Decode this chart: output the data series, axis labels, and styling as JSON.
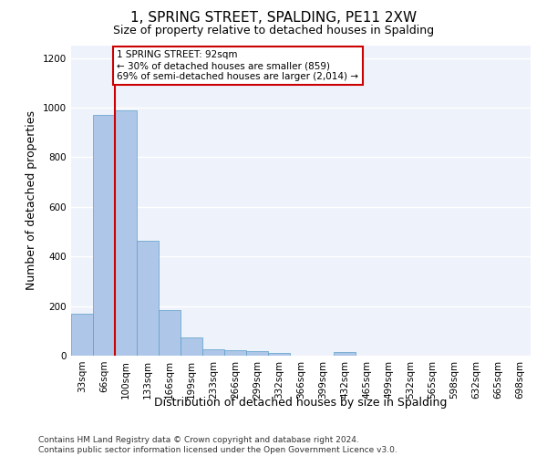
{
  "title": "1, SPRING STREET, SPALDING, PE11 2XW",
  "subtitle": "Size of property relative to detached houses in Spalding",
  "xlabel": "Distribution of detached houses by size in Spalding",
  "ylabel": "Number of detached properties",
  "categories": [
    "33sqm",
    "66sqm",
    "100sqm",
    "133sqm",
    "166sqm",
    "199sqm",
    "233sqm",
    "266sqm",
    "299sqm",
    "332sqm",
    "366sqm",
    "399sqm",
    "432sqm",
    "465sqm",
    "499sqm",
    "532sqm",
    "565sqm",
    "598sqm",
    "632sqm",
    "665sqm",
    "698sqm"
  ],
  "values": [
    170,
    970,
    990,
    465,
    185,
    75,
    27,
    22,
    18,
    11,
    0,
    0,
    15,
    0,
    0,
    0,
    0,
    0,
    0,
    0,
    0
  ],
  "bar_color": "#aec6e8",
  "bar_edge_color": "#5a9fc8",
  "red_line_x": 1.5,
  "annotation_text": "1 SPRING STREET: 92sqm\n← 30% of detached houses are smaller (859)\n69% of semi-detached houses are larger (2,014) →",
  "annotation_box_color": "#ffffff",
  "annotation_box_edge_color": "#cc0000",
  "ylim": [
    0,
    1250
  ],
  "yticks": [
    0,
    200,
    400,
    600,
    800,
    1000,
    1200
  ],
  "footer_text": "Contains HM Land Registry data © Crown copyright and database right 2024.\nContains public sector information licensed under the Open Government Licence v3.0.",
  "background_color": "#eef2fa",
  "grid_color": "#ffffff",
  "title_fontsize": 11,
  "subtitle_fontsize": 9,
  "axis_label_fontsize": 9,
  "tick_fontsize": 7.5,
  "annotation_fontsize": 7.5,
  "footer_fontsize": 6.5
}
